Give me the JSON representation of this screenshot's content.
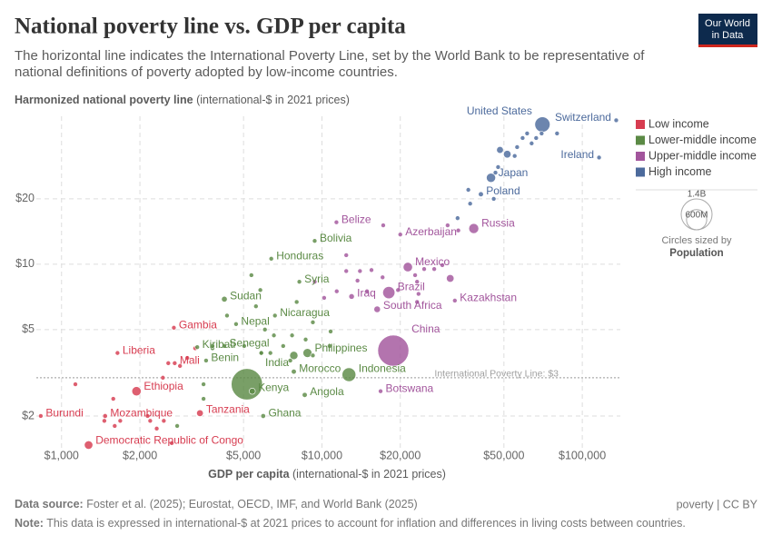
{
  "chart_data": {
    "type": "scatter",
    "title": "National poverty line vs. GDP per capita",
    "subtitle": [
      "The horizontal line indicates the International Poverty Line, set by the World Bank to be representative of",
      "national definitions of poverty adopted by low-income countries."
    ],
    "logo": [
      "Our World",
      "in Data"
    ],
    "y_label": "Harmonized national poverty line",
    "y_unit": "(international-$ in 2021 prices)",
    "x_label": "GDP per capita",
    "x_unit": "(international-$ in 2021 prices)",
    "source_label": "Data source:",
    "source": "Foster et al. (2025); Eurostat, OECD, IMF, and World Bank (2025)",
    "license": "poverty | CC BY",
    "note_label": "Note:",
    "note": "This data is expressed in international-$ at 2021 prices to account for inflation and differences in living costs between countries.",
    "xlog": true,
    "ylog": true,
    "grid": true,
    "xlim": [
      800,
      140000
    ],
    "ylim": [
      1.4,
      48
    ],
    "xticks": [
      {
        "value": 1000,
        "label": "$1,000"
      },
      {
        "value": 2000,
        "label": "$2,000"
      },
      {
        "value": 5000,
        "label": "$5,000"
      },
      {
        "value": 10000,
        "label": "$10,000"
      },
      {
        "value": 20000,
        "label": "$20,000"
      },
      {
        "value": 50000,
        "label": "$50,000"
      },
      {
        "value": 100000,
        "label": "$100,000"
      }
    ],
    "yticks": [
      {
        "value": 2,
        "label": "$2"
      },
      {
        "value": 5,
        "label": "$5"
      },
      {
        "value": 10,
        "label": "$10"
      },
      {
        "value": 20,
        "label": "$20"
      }
    ],
    "reference_line": {
      "value": 3,
      "label": "International Poverty Line: $3"
    },
    "legend": "right",
    "size_legend": {
      "title": "Circles sized by",
      "variable": "Population",
      "ticks": [
        {
          "value": 1400,
          "label": "1.4B"
        },
        {
          "value": 600,
          "label": "600M"
        }
      ]
    },
    "series": [
      {
        "name": "Low income",
        "color": "#d73c50",
        "labels": [
          "Ethiopia",
          "Democratic Republic of Congo",
          "Tanzania",
          "Mozambique",
          "Mali",
          "Burundi",
          "Liberia",
          "Gambia",
          null,
          null,
          null,
          null,
          null,
          null,
          null,
          null,
          null,
          null,
          null,
          null,
          null,
          null,
          null
        ],
        "x": [
          1940,
          1270,
          3400,
          1470,
          2720,
          832,
          1640,
          2700,
          1130,
          1580,
          1680,
          1600,
          1460,
          2190,
          2470,
          2650,
          2570,
          2850,
          3040,
          3260,
          2450,
          2320,
          2140
        ],
        "values": [
          2.6,
          1.47,
          2.06,
          2.0,
          3.5,
          2.0,
          3.9,
          5.1,
          2.8,
          2.4,
          1.9,
          1.8,
          1.9,
          1.9,
          1.9,
          1.5,
          3.5,
          3.4,
          3.7,
          4.1,
          3.0,
          1.75,
          2.0
        ],
        "sizes": [
          126,
          105,
          66,
          33,
          23,
          13,
          5,
          2.7,
          10,
          10,
          10,
          10,
          10,
          10,
          10,
          10,
          10,
          10,
          10,
          10,
          10,
          10,
          10
        ]
      },
      {
        "name": "Lower-middle income",
        "color": "#5b8a45",
        "labels": [
          "India",
          "Indonesia",
          "Philippines",
          "Kenya",
          "Sudan",
          "Angola",
          "Morocco",
          "Ghana",
          "Nepal",
          "Syria",
          "Senegal",
          "Benin",
          "Bolivia",
          "Honduras",
          "Nicaragua",
          "Kiribati",
          null,
          null,
          null,
          null,
          null,
          null,
          null,
          null,
          null,
          null,
          null,
          null,
          null,
          null,
          null,
          null,
          null,
          null,
          null,
          null,
          null,
          null,
          null,
          null,
          null
        ],
        "x": [
          5150,
          12700,
          8800,
          5400,
          4220,
          8590,
          7800,
          5950,
          4680,
          8190,
          4220,
          3590,
          9380,
          6390,
          6600,
          3320,
          7800,
          5360,
          5800,
          5580,
          4320,
          5030,
          3800,
          5850,
          6340,
          6540,
          8000,
          9230,
          10800,
          8660,
          6040,
          7680,
          7100,
          9230,
          3510,
          3800,
          2780,
          3510,
          5850,
          7560,
          10700
        ],
        "values": [
          2.8,
          3.1,
          3.9,
          2.6,
          6.9,
          2.5,
          3.2,
          2.0,
          5.3,
          8.3,
          4.2,
          3.6,
          12.8,
          10.6,
          5.8,
          4.15,
          3.8,
          8.9,
          7.6,
          6.4,
          5.8,
          4.2,
          4.1,
          3.9,
          3.9,
          4.7,
          6.7,
          5.4,
          4.9,
          4.5,
          5.0,
          4.7,
          4.2,
          3.8,
          2.8,
          4.2,
          1.8,
          2.4,
          3.9,
          3.6,
          4.2
        ],
        "sizes": [
          1430,
          277,
          117,
          55,
          48,
          37,
          37,
          34,
          30,
          23,
          18,
          13,
          12,
          10,
          7,
          0.13,
          100,
          10,
          10,
          10,
          10,
          10,
          10,
          10,
          10,
          10,
          10,
          10,
          10,
          10,
          10,
          10,
          10,
          10,
          10,
          10,
          10,
          10,
          10,
          10,
          10
        ]
      },
      {
        "name": "Upper-middle income",
        "color": "#a2559c",
        "labels": [
          "China",
          "Brazil",
          "Russia",
          "Mexico",
          "South Africa",
          "Iraq",
          "Kazakhstan",
          "Azerbaijan",
          "Botswana",
          "Belize",
          null,
          null,
          null,
          null,
          null,
          null,
          null,
          null,
          null,
          null,
          null,
          null,
          null,
          null,
          null,
          null,
          null,
          null,
          null,
          null,
          null,
          null
        ],
        "x": [
          18800,
          18070,
          38300,
          21380,
          16300,
          13000,
          32400,
          20000,
          16800,
          11370,
          31100,
          12400,
          12400,
          14000,
          15500,
          17100,
          22800,
          24700,
          27000,
          29000,
          23200,
          30400,
          33400,
          14900,
          19600,
          11400,
          23200,
          10200,
          13700,
          17200,
          23500,
          9380
        ],
        "values": [
          4.0,
          7.4,
          14.6,
          9.7,
          6.2,
          7.1,
          6.8,
          13.7,
          2.6,
          15.6,
          8.6,
          11.0,
          9.3,
          9.3,
          9.4,
          8.7,
          8.9,
          9.5,
          9.5,
          9.9,
          8.3,
          15.1,
          14.3,
          7.5,
          7.6,
          7.5,
          6.7,
          7.0,
          8.4,
          15.1,
          7.3,
          8.3
        ],
        "sizes": [
          1410,
          216,
          144,
          128,
          62,
          45,
          20,
          10,
          2.6,
          0.4,
          85,
          10,
          10,
          10,
          10,
          10,
          10,
          10,
          10,
          10,
          10,
          10,
          10,
          10,
          10,
          10,
          10,
          10,
          10,
          10,
          10,
          10
        ]
      },
      {
        "name": "High income",
        "color": "#4c6a9c",
        "labels": [
          "United States",
          "Japan",
          "Poland",
          "Switzerland",
          "Ireland",
          null,
          null,
          null,
          null,
          null,
          null,
          null,
          null,
          null,
          null,
          null,
          null,
          null,
          null,
          null,
          null
        ],
        "x": [
          70300,
          44600,
          40800,
          135000,
          116000,
          51500,
          48300,
          56200,
          59000,
          61400,
          63900,
          66500,
          69800,
          80000,
          47500,
          55000,
          36500,
          37100,
          45700,
          33200,
          46400
        ],
        "values": [
          44,
          25,
          21,
          46,
          31,
          32.1,
          33.6,
          34.6,
          38.1,
          40,
          36,
          38.1,
          40,
          40,
          28,
          31.5,
          22,
          19,
          20,
          16.3,
          26.4
        ],
        "sizes": [
          340,
          124,
          37,
          9,
          5,
          84,
          68,
          10,
          10,
          10,
          10,
          10,
          10,
          10,
          10,
          10,
          10,
          10,
          10,
          10,
          10
        ]
      }
    ]
  }
}
